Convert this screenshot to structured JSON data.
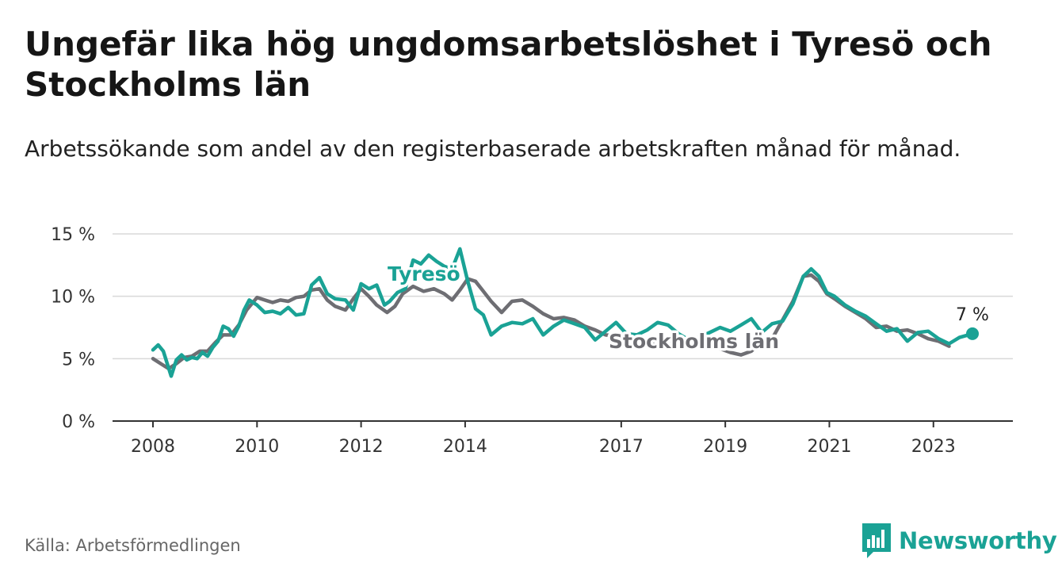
{
  "title": "Ungefär lika hög ungdomsarbetslöshet i Tyresö och Stockholms län",
  "subtitle": "Arbetssökande som andel av den registerbaserade arbetskraften månad för månad.",
  "source": "Källa: Arbetsförmedlingen",
  "brand": {
    "name": "Newsworthy",
    "icon": "newsworthy-logo-icon"
  },
  "colors": {
    "tyreso": "#1aa295",
    "stockholm": "#6e6e73",
    "grid": "#d9d9d9",
    "axis": "#333333"
  },
  "chart_data": {
    "type": "line",
    "title": "Ungefär lika hög ungdomsarbetslöshet i Tyresö och Stockholms län",
    "xlabel": "",
    "ylabel": "",
    "x_range": [
      2008.0,
      2023.75
    ],
    "ylim": [
      0,
      15
    ],
    "y_ticks": [
      0,
      5,
      10,
      15
    ],
    "y_tick_labels": [
      "0 %",
      "5 %",
      "10 %",
      "15 %"
    ],
    "x_ticks": [
      2008,
      2010,
      2012,
      2014,
      2017,
      2019,
      2021,
      2023
    ],
    "x_tick_labels": [
      "2008",
      "2010",
      "2012",
      "2014",
      "2017",
      "2019",
      "2021",
      "2023"
    ],
    "grid": true,
    "end_label": "7 %",
    "series": [
      {
        "name": "Tyresö",
        "label": "Tyresö",
        "x": [
          2008.0,
          2008.1,
          2008.2,
          2008.35,
          2008.45,
          2008.55,
          2008.65,
          2008.75,
          2008.85,
          2008.95,
          2009.05,
          2009.15,
          2009.25,
          2009.35,
          2009.45,
          2009.55,
          2009.65,
          2009.75,
          2009.85,
          2010.0,
          2010.15,
          2010.3,
          2010.45,
          2010.6,
          2010.75,
          2010.9,
          2011.05,
          2011.2,
          2011.35,
          2011.5,
          2011.7,
          2011.85,
          2012.0,
          2012.15,
          2012.3,
          2012.45,
          2012.55,
          2012.7,
          2012.85,
          2013.0,
          2013.15,
          2013.3,
          2013.45,
          2013.6,
          2013.75,
          2013.9,
          2014.05,
          2014.2,
          2014.35,
          2014.5,
          2014.7,
          2014.9,
          2015.1,
          2015.3,
          2015.5,
          2015.7,
          2015.9,
          2016.1,
          2016.3,
          2016.5,
          2016.7,
          2016.9,
          2017.1,
          2017.3,
          2017.5,
          2017.7,
          2017.9,
          2018.1,
          2018.3,
          2018.5,
          2018.7,
          2018.9,
          2019.1,
          2019.3,
          2019.5,
          2019.7,
          2019.9,
          2020.1,
          2020.3,
          2020.5,
          2020.65,
          2020.8,
          2020.95,
          2021.1,
          2021.3,
          2021.5,
          2021.7,
          2021.9,
          2022.1,
          2022.3,
          2022.5,
          2022.7,
          2022.9,
          2023.1,
          2023.3,
          2023.5,
          2023.75
        ],
        "values": [
          5.7,
          6.1,
          5.6,
          3.6,
          4.9,
          5.3,
          4.9,
          5.1,
          5.0,
          5.5,
          5.2,
          5.9,
          6.4,
          7.6,
          7.4,
          6.8,
          7.6,
          8.9,
          9.7,
          9.3,
          8.7,
          8.8,
          8.6,
          9.1,
          8.5,
          8.6,
          10.9,
          11.5,
          10.2,
          9.8,
          9.7,
          8.9,
          11.0,
          10.6,
          10.9,
          9.3,
          9.6,
          10.3,
          10.6,
          12.9,
          12.6,
          13.3,
          12.8,
          12.4,
          12.2,
          13.8,
          11.2,
          9.0,
          8.5,
          6.9,
          7.6,
          7.9,
          7.8,
          8.2,
          6.9,
          7.6,
          8.1,
          7.8,
          7.5,
          6.5,
          7.2,
          7.9,
          7.0,
          6.9,
          7.3,
          7.9,
          7.7,
          7.0,
          6.5,
          6.7,
          7.1,
          7.5,
          7.2,
          7.7,
          8.2,
          7.1,
          7.8,
          8.0,
          9.4,
          11.6,
          12.2,
          11.6,
          10.3,
          10.0,
          9.3,
          8.8,
          8.4,
          7.8,
          7.2,
          7.4,
          6.4,
          7.1,
          7.2,
          6.6,
          6.2,
          6.7,
          7.0
        ]
      },
      {
        "name": "Stockholms län",
        "label": "Stockholms län",
        "x": [
          2008.0,
          2008.15,
          2008.3,
          2008.45,
          2008.6,
          2008.75,
          2008.9,
          2009.05,
          2009.2,
          2009.35,
          2009.5,
          2009.65,
          2009.8,
          2010.0,
          2010.15,
          2010.3,
          2010.45,
          2010.6,
          2010.75,
          2010.9,
          2011.05,
          2011.2,
          2011.35,
          2011.5,
          2011.7,
          2011.85,
          2012.0,
          2012.15,
          2012.3,
          2012.5,
          2012.65,
          2012.8,
          2013.0,
          2013.2,
          2013.4,
          2013.6,
          2013.75,
          2013.9,
          2014.05,
          2014.2,
          2014.35,
          2014.5,
          2014.7,
          2014.9,
          2015.1,
          2015.3,
          2015.5,
          2015.7,
          2015.9,
          2016.1,
          2016.3,
          2016.5,
          2016.7,
          2016.9,
          2017.1,
          2017.3,
          2017.5,
          2017.7,
          2017.9,
          2018.1,
          2018.3,
          2018.5,
          2018.7,
          2018.9,
          2019.1,
          2019.3,
          2019.5,
          2019.7,
          2019.9,
          2020.1,
          2020.3,
          2020.5,
          2020.65,
          2020.8,
          2020.95,
          2021.1,
          2021.3,
          2021.5,
          2021.7,
          2021.9,
          2022.1,
          2022.3,
          2022.5,
          2022.7,
          2022.9,
          2023.1,
          2023.3
        ],
        "values": [
          5.0,
          4.6,
          4.2,
          4.6,
          5.1,
          5.2,
          5.6,
          5.6,
          6.3,
          6.9,
          6.9,
          7.7,
          8.9,
          9.9,
          9.7,
          9.5,
          9.7,
          9.6,
          9.9,
          10.0,
          10.5,
          10.6,
          9.7,
          9.2,
          8.9,
          9.8,
          10.6,
          10.0,
          9.3,
          8.7,
          9.2,
          10.2,
          10.8,
          10.4,
          10.6,
          10.2,
          9.7,
          10.5,
          11.4,
          11.2,
          10.4,
          9.6,
          8.7,
          9.6,
          9.7,
          9.2,
          8.6,
          8.2,
          8.3,
          8.1,
          7.6,
          7.3,
          6.9,
          6.8,
          6.6,
          6.6,
          6.4,
          6.3,
          6.3,
          6.2,
          6.1,
          6.0,
          5.9,
          5.8,
          5.5,
          5.3,
          5.6,
          6.4,
          6.6,
          8.1,
          9.6,
          11.6,
          11.7,
          11.2,
          10.2,
          9.8,
          9.2,
          8.7,
          8.2,
          7.5,
          7.6,
          7.2,
          7.3,
          7.0,
          6.6,
          6.4,
          6.0
        ]
      }
    ]
  }
}
